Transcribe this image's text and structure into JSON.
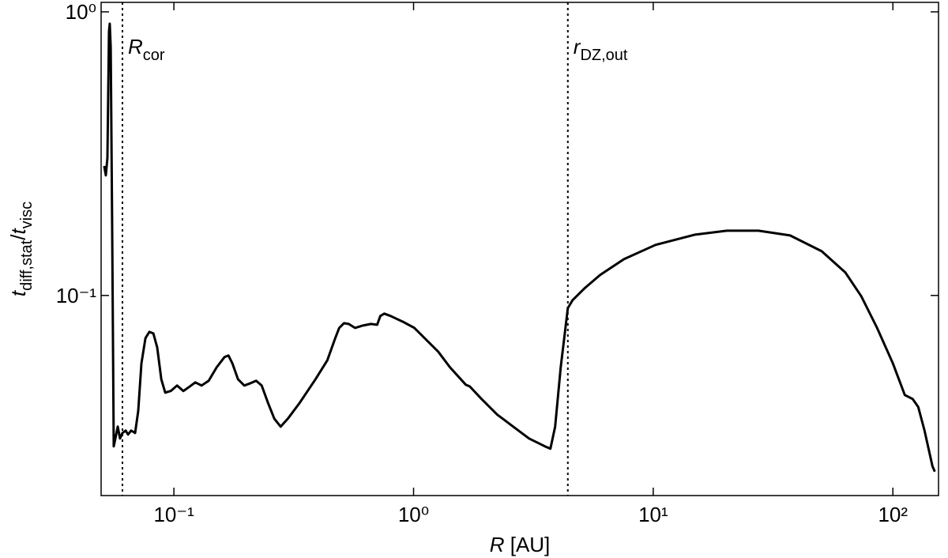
{
  "chart_data": {
    "type": "line",
    "xlabel": {
      "symbol": "R",
      "unit": "[AU]"
    },
    "ylabel": {
      "symbol1": "t",
      "sub1": "diff,stat",
      "sep": "/",
      "symbol2": "t",
      "sub2": "visc"
    },
    "xscale": "log",
    "yscale": "log",
    "xlim": [
      0.0497,
      155
    ],
    "ylim": [
      0.0197,
      1.08
    ],
    "xticks": [
      {
        "value": 0.1,
        "label": "10⁻¹"
      },
      {
        "value": 1,
        "label": "10⁰"
      },
      {
        "value": 10,
        "label": "10¹"
      },
      {
        "value": 100,
        "label": "10²"
      }
    ],
    "yticks": [
      {
        "value": 0.1,
        "label": "10⁻¹"
      },
      {
        "value": 1,
        "label": "10⁰"
      }
    ],
    "vlines": [
      {
        "x": 0.061,
        "symbol": "R",
        "sub": "cor"
      },
      {
        "x": 4.402,
        "symbol": "r",
        "sub": "DZ,out"
      }
    ],
    "series": [
      {
        "color": "#000000",
        "x": [
          0.0512,
          0.052,
          0.0528,
          0.0536,
          0.054,
          0.0545,
          0.0553,
          0.0561,
          0.057,
          0.0583,
          0.0596,
          0.061,
          0.0629,
          0.0644,
          0.0663,
          0.0689,
          0.071,
          0.0732,
          0.0761,
          0.079,
          0.0821,
          0.0852,
          0.0886,
          0.092,
          0.097,
          0.1031,
          0.1095,
          0.1155,
          0.1228,
          0.1305,
          0.1397,
          0.1508,
          0.1626,
          0.1689,
          0.1754,
          0.1851,
          0.1967,
          0.209,
          0.2204,
          0.2324,
          0.247,
          0.2625,
          0.279,
          0.2987,
          0.3347,
          0.3898,
          0.4368,
          0.4713,
          0.4895,
          0.5124,
          0.5363,
          0.5699,
          0.6148,
          0.6635,
          0.7049,
          0.7266,
          0.7548,
          0.8021,
          0.8992,
          1.008,
          1.129,
          1.266,
          1.419,
          1.652,
          1.715,
          1.922,
          2.238,
          2.605,
          3.033,
          3.531,
          3.724,
          3.897,
          4.111,
          4.303,
          4.402,
          4.607,
          5.164,
          6.01,
          7.549,
          10.23,
          14.96,
          20.28,
          27.48,
          37.24,
          50.47,
          63.39,
          73.79,
          85.9,
          100,
          112.1,
          120.9,
          127.5,
          135.5,
          146.2,
          149.6
        ],
        "values": [
          0.2862,
          0.2651,
          0.3052,
          0.852,
          0.908,
          0.749,
          0.1607,
          0.02938,
          0.03131,
          0.03448,
          0.03131,
          0.03275,
          0.03339,
          0.03234,
          0.03339,
          0.03275,
          0.0392,
          0.0576,
          0.07073,
          0.07442,
          0.07347,
          0.0655,
          0.05067,
          0.04544,
          0.04603,
          0.04813,
          0.04603,
          0.04751,
          0.04938,
          0.04813,
          0.05002,
          0.05579,
          0.06064,
          0.06142,
          0.0576,
          0.05067,
          0.04813,
          0.04906,
          0.05002,
          0.04813,
          0.0418,
          0.03676,
          0.03448,
          0.03676,
          0.0418,
          0.05067,
          0.05911,
          0.07073,
          0.07684,
          0.07986,
          0.07935,
          0.07684,
          0.07834,
          0.07935,
          0.07884,
          0.08465,
          0.08629,
          0.08465,
          0.0809,
          0.07684,
          0.06982,
          0.06342,
          0.05579,
          0.04843,
          0.0478,
          0.04315,
          0.03796,
          0.03448,
          0.03131,
          0.02938,
          0.02882,
          0.03448,
          0.05579,
          0.07684,
          0.09023,
          0.09622,
          0.1059,
          0.1182,
          0.1343,
          0.1508,
          0.1639,
          0.1692,
          0.1692,
          0.1628,
          0.1432,
          0.1204,
          0.09936,
          0.07684,
          0.0576,
          0.04457,
          0.04315,
          0.04047,
          0.03339,
          0.02502,
          0.02392
        ]
      }
    ]
  }
}
